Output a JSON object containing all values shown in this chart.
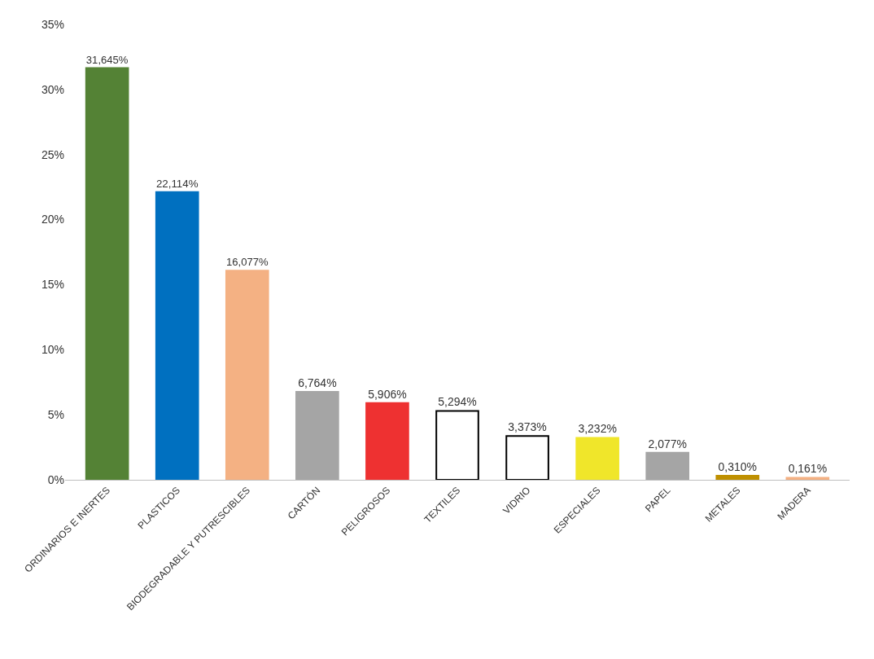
{
  "chart_data": {
    "type": "bar",
    "categories": [
      "ORDINARIOS E INERTES",
      "PLASTICOS",
      "BIODEGRADABLE Y PUTRESCIBLES",
      "CARTÓN",
      "PELIGROSOS",
      "TEXTILES",
      "VIDRIO",
      "ESPECIALES",
      "PAPEL",
      "METALES",
      "MADERA"
    ],
    "values": [
      31.645,
      22.114,
      16.077,
      6.764,
      5.906,
      5.294,
      3.373,
      3.232,
      2.077,
      0.31,
      0.161
    ],
    "value_labels": [
      "31,645%",
      "22,114%",
      "16,077%",
      "6,764%",
      "5,906%",
      "5,294%",
      "3,373%",
      "3,232%",
      "2,077%",
      "0,310%",
      "0,161%"
    ],
    "colors": [
      "#548235",
      "#0070c0",
      "#f4b183",
      "#a5a5a5",
      "#ee3131",
      "#ffffff",
      "#ffffff",
      "#f0e62a",
      "#a5a5a5",
      "#bf9000",
      "#f4b183"
    ],
    "ylim": [
      0,
      35
    ],
    "yticks": [
      {
        "value": 0,
        "label": "0%"
      },
      {
        "value": 5,
        "label": "5%"
      },
      {
        "value": 10,
        "label": "10%"
      },
      {
        "value": 15,
        "label": "15%"
      },
      {
        "value": 20,
        "label": "20%"
      },
      {
        "value": 25,
        "label": "25%"
      },
      {
        "value": 30,
        "label": "30%"
      },
      {
        "value": 35,
        "label": "35%"
      }
    ],
    "legend": false
  }
}
